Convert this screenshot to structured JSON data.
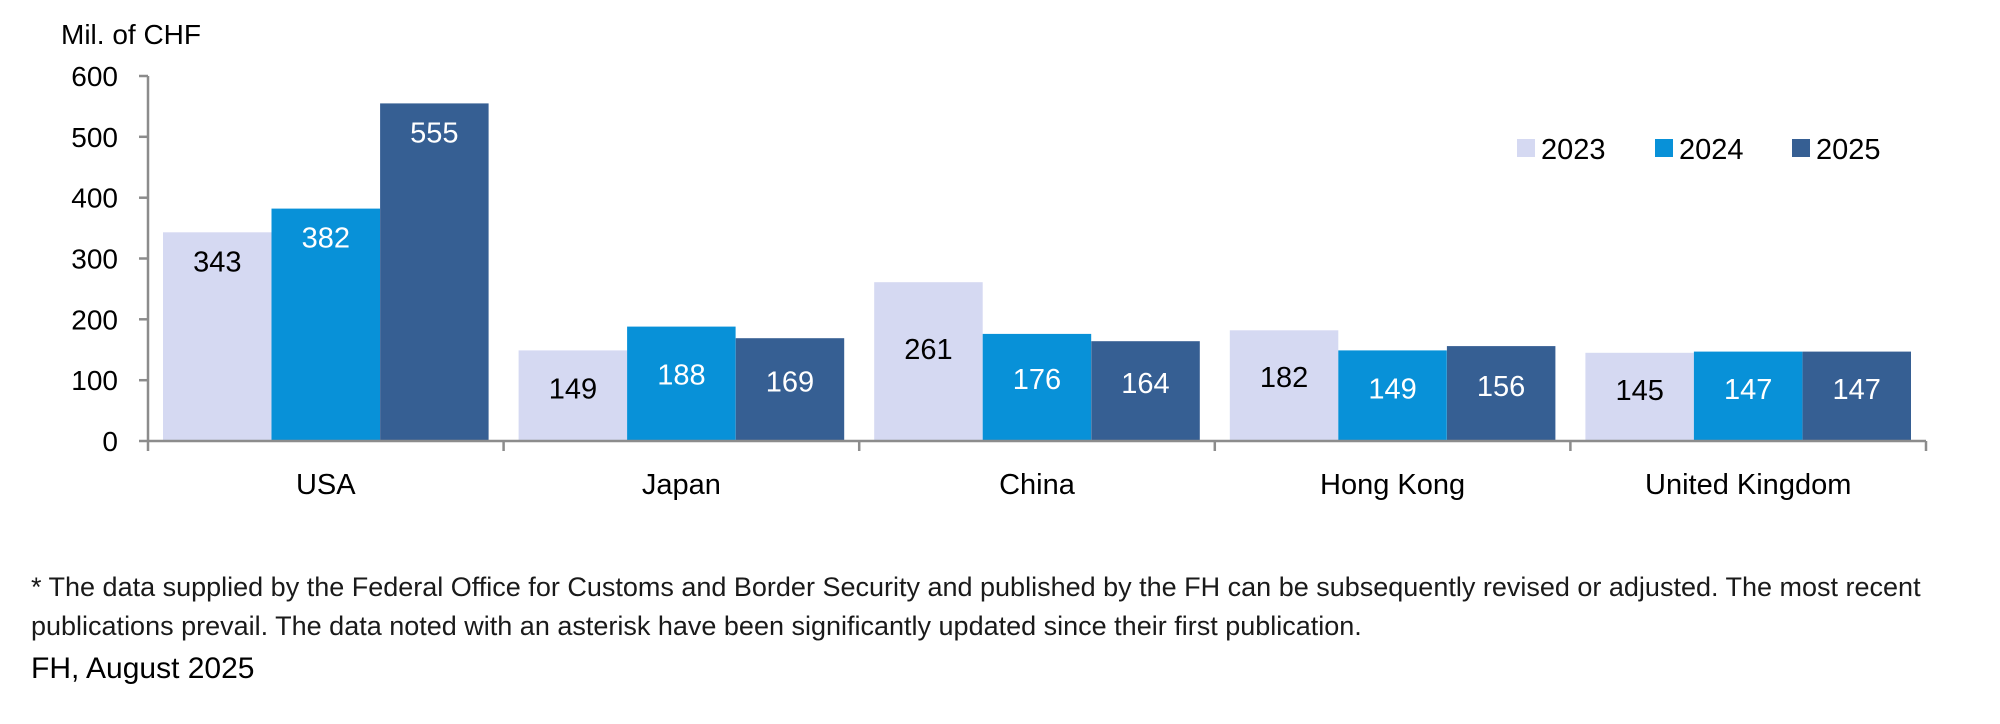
{
  "chart_data": {
    "type": "bar",
    "ylabel": "Mil. of CHF",
    "ylim": [
      0,
      600
    ],
    "yticks": [
      0,
      100,
      200,
      300,
      400,
      500,
      600
    ],
    "categories": [
      "USA",
      "Japan",
      "China",
      "Hong Kong",
      "United Kingdom"
    ],
    "series": [
      {
        "name": "2023",
        "color": "#d5d9f2",
        "label_color": "#000000",
        "values": [
          343,
          149,
          261,
          182,
          145
        ]
      },
      {
        "name": "2024",
        "color": "#0891d8",
        "label_color": "#ffffff",
        "values": [
          382,
          188,
          176,
          149,
          147
        ]
      },
      {
        "name": "2025",
        "color": "#365f93",
        "label_color": "#ffffff",
        "values": [
          555,
          169,
          164,
          156,
          147
        ]
      }
    ],
    "legend_position": "top-right",
    "grid": false
  },
  "footnote": "* The data supplied by the Federal Office for Customs and Border Security and published by the FH can be subsequently revised or adjusted. The most recent publications prevail. The data noted with an asterisk have been significantly updated since their first publication.",
  "source": "FH, August 2025"
}
